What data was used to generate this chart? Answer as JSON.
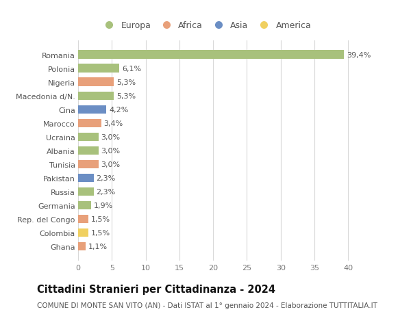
{
  "countries": [
    "Romania",
    "Polonia",
    "Nigeria",
    "Macedonia d/N.",
    "Cina",
    "Marocco",
    "Ucraina",
    "Albania",
    "Tunisia",
    "Pakistan",
    "Russia",
    "Germania",
    "Rep. del Congo",
    "Colombia",
    "Ghana"
  ],
  "values": [
    39.4,
    6.1,
    5.3,
    5.3,
    4.2,
    3.4,
    3.0,
    3.0,
    3.0,
    2.3,
    2.3,
    1.9,
    1.5,
    1.5,
    1.1
  ],
  "labels": [
    "39,4%",
    "6,1%",
    "5,3%",
    "5,3%",
    "4,2%",
    "3,4%",
    "3,0%",
    "3,0%",
    "3,0%",
    "2,3%",
    "2,3%",
    "1,9%",
    "1,5%",
    "1,5%",
    "1,1%"
  ],
  "continents": [
    "Europa",
    "Europa",
    "Africa",
    "Europa",
    "Asia",
    "Africa",
    "Europa",
    "Europa",
    "Africa",
    "Asia",
    "Europa",
    "Europa",
    "Africa",
    "America",
    "Africa"
  ],
  "continent_colors": {
    "Europa": "#a8c17c",
    "Africa": "#e8a07a",
    "Asia": "#6b8ec4",
    "America": "#f0d060"
  },
  "legend_order": [
    "Europa",
    "Africa",
    "Asia",
    "America"
  ],
  "xlim": [
    0,
    42
  ],
  "xticks": [
    0,
    5,
    10,
    15,
    20,
    25,
    30,
    35,
    40
  ],
  "title": "Cittadini Stranieri per Cittadinanza - 2024",
  "subtitle": "COMUNE DI MONTE SAN VITO (AN) - Dati ISTAT al 1° gennaio 2024 - Elaborazione TUTTITALIA.IT",
  "background_color": "#ffffff",
  "grid_color": "#d8d8d8",
  "bar_height": 0.62,
  "label_fontsize": 8,
  "tick_fontsize": 8,
  "title_fontsize": 10.5,
  "subtitle_fontsize": 7.5,
  "legend_fontsize": 9
}
